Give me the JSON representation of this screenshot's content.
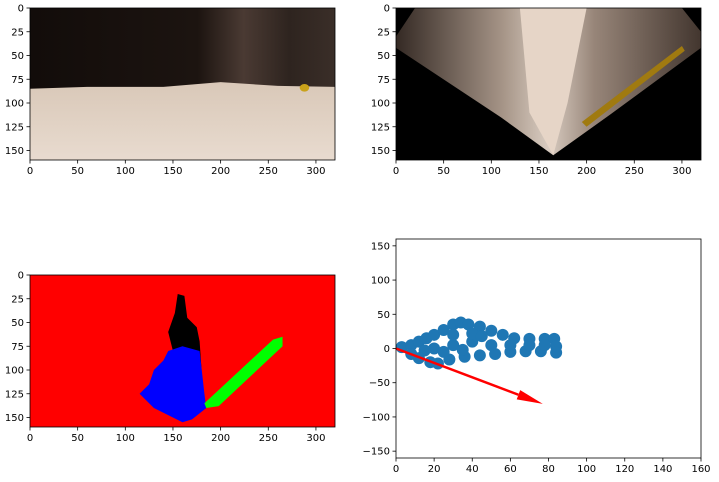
{
  "chart_data": [
    {
      "type": "image",
      "xlim": [
        0,
        320
      ],
      "ylim": [
        160,
        0
      ],
      "xticks": [
        0,
        50,
        100,
        150,
        200,
        250,
        300
      ],
      "yticks": [
        0,
        25,
        50,
        75,
        100,
        125,
        150
      ]
    },
    {
      "type": "image",
      "xlim": [
        0,
        320
      ],
      "ylim": [
        160,
        0
      ],
      "xticks": [
        0,
        50,
        100,
        150,
        200,
        250,
        300
      ],
      "yticks": [
        0,
        25,
        50,
        75,
        100,
        125,
        150
      ]
    },
    {
      "type": "image",
      "xlim": [
        0,
        320
      ],
      "ylim": [
        160,
        0
      ],
      "xticks": [
        0,
        50,
        100,
        150,
        200,
        250,
        300
      ],
      "yticks": [
        0,
        25,
        50,
        75,
        100,
        125,
        150
      ]
    },
    {
      "type": "scatter",
      "xlim": [
        0,
        160
      ],
      "ylim": [
        -160,
        160
      ],
      "xticks": [
        0,
        20,
        40,
        60,
        80,
        100,
        120,
        140,
        160
      ],
      "yticks": [
        {
          "value": -150,
          "label": "−150"
        },
        {
          "value": -100,
          "label": "−100"
        },
        {
          "value": -50,
          "label": "−50"
        },
        0,
        50,
        100,
        150
      ],
      "color": "#1f77b4",
      "x": [
        3,
        8,
        12,
        16,
        20,
        25,
        30,
        34,
        38,
        44,
        50,
        56,
        62,
        70,
        78,
        83,
        84,
        84,
        76,
        68,
        60,
        52,
        44,
        36,
        28,
        22,
        18,
        12,
        8,
        20,
        30,
        40,
        50,
        60,
        70,
        30,
        40,
        25,
        15,
        35,
        78,
        45
      ],
      "y": [
        2,
        5,
        10,
        15,
        20,
        27,
        35,
        38,
        35,
        32,
        26,
        20,
        15,
        14,
        14,
        14,
        3,
        -6,
        -4,
        -4,
        -5,
        -8,
        -10,
        -12,
        -16,
        -22,
        -20,
        -14,
        -8,
        0,
        5,
        10,
        5,
        5,
        5,
        20,
        22,
        -5,
        -3,
        -2,
        5,
        18
      ],
      "arrow": {
        "x": 0,
        "y": 0,
        "dx": 77,
        "dy": -81,
        "color": "red"
      }
    }
  ]
}
